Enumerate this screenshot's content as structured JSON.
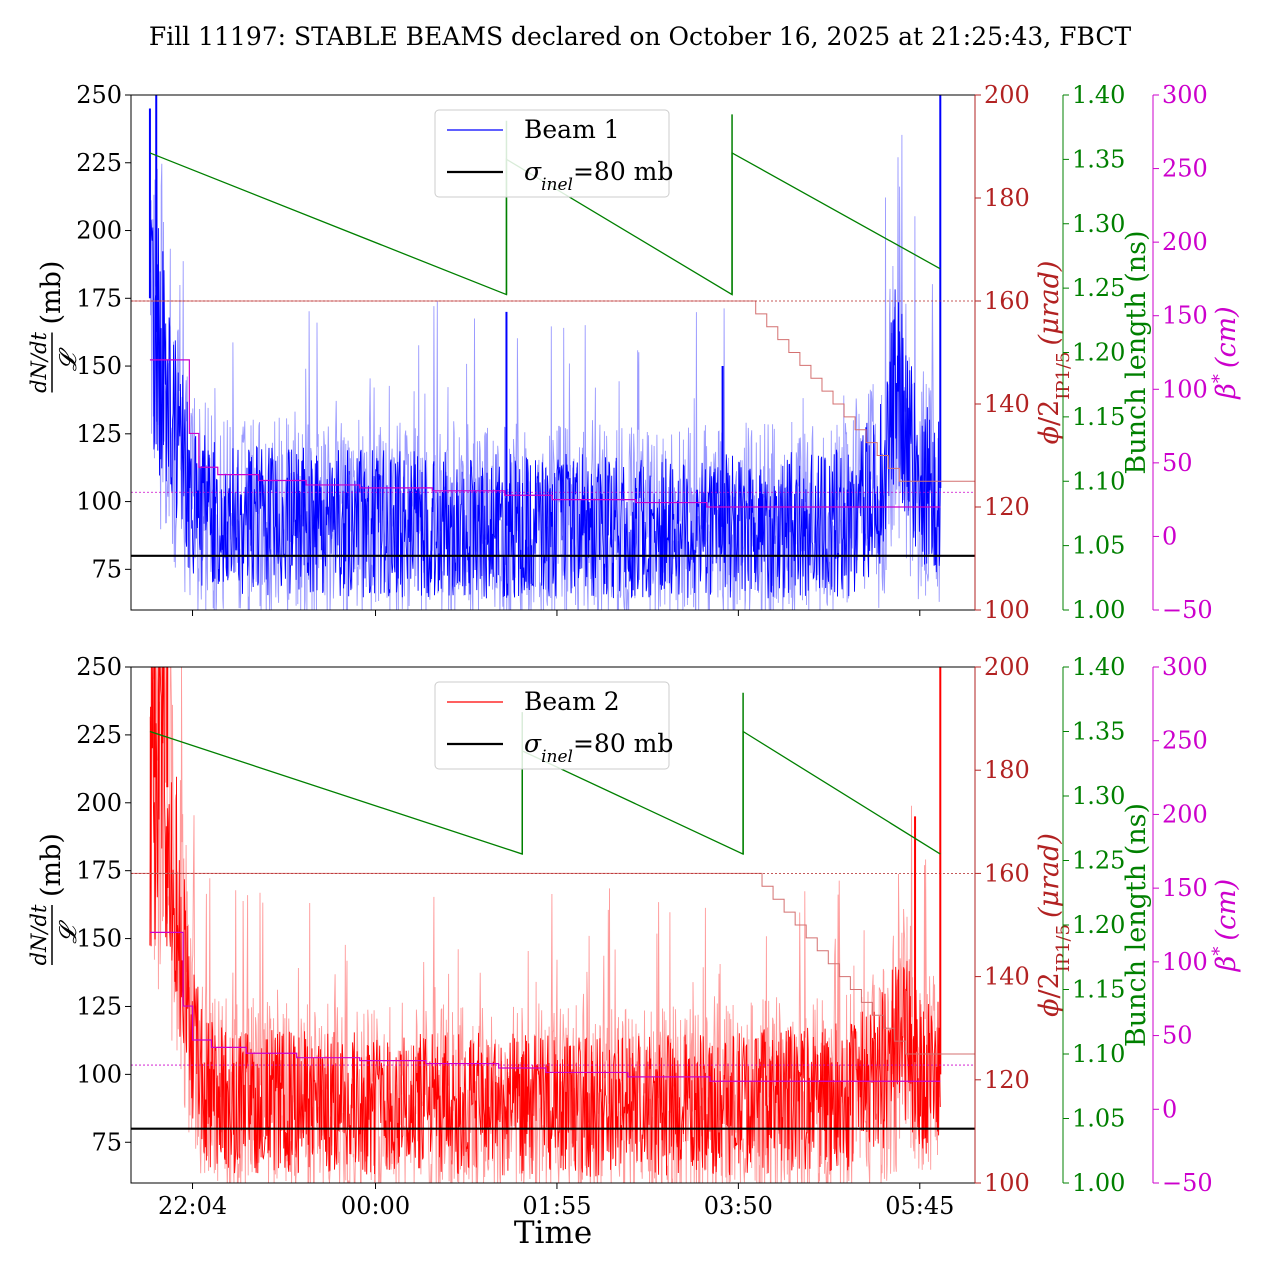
{
  "figure": {
    "title": "Fill 11197: STABLE BEAMS declared on October 16, 2025 at 21:25:43, FBCT",
    "xlabel": "Time"
  },
  "colors": {
    "beam1": "#0000ff",
    "beam1_light": "#9a9aff",
    "beam2": "#ff0000",
    "beam2_light": "#ff9a9a",
    "crossing_angle": "#b22222",
    "crossing_angle_step": "#d47070",
    "bunch_length": "#008000",
    "beta_star": "#cc00cc",
    "reference": "#000000"
  },
  "chart_data": [
    {
      "type": "line",
      "panel": "top",
      "legend_position": "upper-center",
      "grid": false,
      "x_axis": {
        "label": "",
        "range": [
          "21:25",
          "06:20"
        ],
        "ticks": [
          "22:04",
          "00:00",
          "01:55",
          "03:50",
          "05:45"
        ],
        "tick_labels_visible": false
      },
      "y_axis_left": {
        "label": "dN/dt / 𝓛 (mb)",
        "label_parts": {
          "numerator": "dN/dt",
          "denominator": "𝓛",
          "unit": "(mb)"
        },
        "ylim": [
          60,
          250
        ],
        "ticks": [
          "75",
          "100",
          "125",
          "150",
          "175",
          "200",
          "225",
          "250"
        ]
      },
      "y_axis_crossing_angle": {
        "label": "ϕ/2IP1/5 (μrad)",
        "ylim": [
          100,
          200
        ],
        "ticks": [
          "100",
          "120",
          "140",
          "160",
          "180",
          "200"
        ]
      },
      "y_axis_bunch_length": {
        "label": "Bunch length (ns)",
        "ylim": [
          1.0,
          1.4
        ],
        "ticks": [
          "1.00",
          "1.05",
          "1.10",
          "1.15",
          "1.20",
          "1.25",
          "1.30",
          "1.35",
          "1.40"
        ]
      },
      "y_axis_beta_star": {
        "label": "β* (cm)",
        "ylim": [
          -50,
          300
        ],
        "ticks": [
          "−50",
          "0",
          "50",
          "100",
          "150",
          "200",
          "250",
          "300"
        ]
      },
      "legend": [
        "Beam 1",
        "σinel=80 mb"
      ],
      "series": [
        {
          "name": "Beam 1",
          "axis": "left",
          "style": "noisy",
          "baseline": [
            [
              "21:37",
              175
            ],
            [
              "21:45",
              150
            ],
            [
              "21:55",
              125
            ],
            [
              "22:05",
              98
            ],
            [
              "22:30",
              93
            ],
            [
              "03:00",
              90
            ],
            [
              "05:00",
              92
            ],
            [
              "05:20",
              105
            ],
            [
              "05:30",
              140
            ],
            [
              "05:45",
              105
            ]
          ],
          "spikes": [
            [
              "21:37",
              245
            ],
            [
              "21:41",
              250
            ],
            [
              "01:23",
              170
            ],
            [
              "03:40",
              150
            ],
            [
              "05:58",
              250
            ]
          ]
        },
        {
          "name": "σinel=80 mb",
          "axis": "left",
          "x": [
            "21:25",
            "06:20"
          ],
          "y": [
            80,
            80
          ]
        },
        {
          "name": "Crossing angle",
          "axis": "crossing_angle",
          "x": [
            "21:25",
            "03:58",
            "04:01",
            "04:08",
            "04:15",
            "04:22",
            "04:29",
            "04:36",
            "04:43",
            "04:50",
            "04:57",
            "05:04",
            "05:11",
            "05:18",
            "05:25",
            "05:32",
            "06:20"
          ],
          "y": [
            160,
            160,
            157.5,
            155,
            152.5,
            150,
            147.5,
            145,
            142.5,
            140,
            137.5,
            135,
            132.5,
            130,
            127.5,
            125,
            125
          ]
        },
        {
          "name": "Bunch length",
          "axis": "bunch_length",
          "x": [
            "21:37",
            "01:23",
            "01:23",
            "03:46",
            "03:46",
            "05:58"
          ],
          "y": [
            1.355,
            1.245,
            1.35,
            1.245,
            1.355,
            1.265
          ]
        },
        {
          "name": "β*",
          "axis": "beta_star",
          "x": [
            "21:37",
            "21:52",
            "22:02",
            "22:08",
            "22:20",
            "22:46",
            "23:16",
            "23:50",
            "00:36",
            "01:22",
            "01:52",
            "02:45",
            "03:30",
            "05:58"
          ],
          "y": [
            120,
            120,
            70,
            47,
            42,
            38,
            35,
            33,
            31,
            28,
            25,
            23,
            20,
            20
          ]
        },
        {
          "name": "β* reference",
          "axis": "beta_star",
          "x": [
            "21:25",
            "06:20"
          ],
          "y": [
            30,
            30
          ]
        }
      ]
    },
    {
      "type": "line",
      "panel": "bottom",
      "legend_position": "upper-center",
      "grid": false,
      "x_axis": {
        "label": "Time",
        "range": [
          "21:25",
          "06:20"
        ],
        "ticks": [
          "22:04",
          "00:00",
          "01:55",
          "03:50",
          "05:45"
        ]
      },
      "y_axis_left": {
        "label": "dN/dt / 𝓛 (mb)",
        "label_parts": {
          "numerator": "dN/dt",
          "denominator": "𝓛",
          "unit": "(mb)"
        },
        "ylim": [
          60,
          250
        ],
        "ticks": [
          "75",
          "100",
          "125",
          "150",
          "175",
          "200",
          "225",
          "250"
        ]
      },
      "y_axis_crossing_angle": {
        "label": "ϕ/2IP1/5 (μrad)",
        "ylim": [
          100,
          200
        ],
        "ticks": [
          "100",
          "120",
          "140",
          "160",
          "180",
          "200"
        ]
      },
      "y_axis_bunch_length": {
        "label": "Bunch length (ns)",
        "ylim": [
          1.0,
          1.4
        ],
        "ticks": [
          "1.00",
          "1.05",
          "1.10",
          "1.15",
          "1.20",
          "1.25",
          "1.30",
          "1.35",
          "1.40"
        ]
      },
      "y_axis_beta_star": {
        "label": "β* (cm)",
        "ylim": [
          -50,
          300
        ],
        "ticks": [
          "−50",
          "0",
          "50",
          "100",
          "150",
          "200",
          "250",
          "300"
        ]
      },
      "legend": [
        "Beam 2",
        "σinel=80 mb"
      ],
      "series": [
        {
          "name": "Beam 2",
          "axis": "left",
          "style": "noisy",
          "baseline": [
            [
              "21:37",
              200
            ],
            [
              "21:45",
              225
            ],
            [
              "21:52",
              180
            ],
            [
              "22:00",
              130
            ],
            [
              "22:10",
              95
            ],
            [
              "22:30",
              90
            ],
            [
              "03:00",
              88
            ],
            [
              "05:00",
              92
            ],
            [
              "05:20",
              100
            ],
            [
              "05:35",
              115
            ],
            [
              "05:45",
              100
            ]
          ],
          "spikes": [
            [
              "21:40",
              250
            ],
            [
              "21:48",
              250
            ],
            [
              "05:42",
              195
            ],
            [
              "05:58",
              250
            ]
          ]
        },
        {
          "name": "σinel=80 mb",
          "axis": "left",
          "x": [
            "21:25",
            "06:20"
          ],
          "y": [
            80,
            80
          ]
        },
        {
          "name": "Crossing angle",
          "axis": "crossing_angle",
          "x": [
            "21:25",
            "04:01",
            "04:05",
            "04:12",
            "04:19",
            "04:26",
            "04:33",
            "04:40",
            "04:47",
            "04:54",
            "05:01",
            "05:08",
            "05:15",
            "05:22",
            "05:29",
            "05:36",
            "06:20"
          ],
          "y": [
            160,
            160,
            157.5,
            155,
            152.5,
            150,
            147.5,
            145,
            142.5,
            140,
            137.5,
            135,
            132.5,
            130,
            127.5,
            125,
            125
          ]
        },
        {
          "name": "Bunch length",
          "axis": "bunch_length",
          "x": [
            "21:37",
            "01:33",
            "01:33",
            "03:53",
            "03:53",
            "05:58"
          ],
          "y": [
            1.35,
            1.255,
            1.335,
            1.255,
            1.35,
            1.255
          ]
        },
        {
          "name": "β*",
          "axis": "beta_star",
          "x": [
            "21:37",
            "21:50",
            "21:58",
            "22:04",
            "22:16",
            "22:38",
            "23:10",
            "23:50",
            "00:32",
            "01:18",
            "01:48",
            "02:40",
            "03:32",
            "05:58"
          ],
          "y": [
            120,
            120,
            70,
            47,
            42,
            38,
            35,
            33,
            31,
            28,
            25,
            22,
            19,
            19
          ]
        },
        {
          "name": "β* reference",
          "axis": "beta_star",
          "x": [
            "21:25",
            "06:20"
          ],
          "y": [
            30,
            30
          ]
        }
      ]
    }
  ]
}
